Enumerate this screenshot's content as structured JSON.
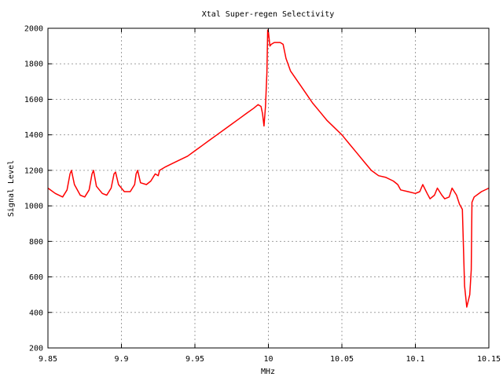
{
  "chart_data": {
    "type": "line",
    "title": "Xtal Super-regen Selectivity",
    "xlabel": "MHz",
    "ylabel": "Signal Level",
    "xlim": [
      9.85,
      10.15
    ],
    "ylim": [
      200,
      2000
    ],
    "x_ticks": [
      9.85,
      9.9,
      9.95,
      10.0,
      10.05,
      10.1,
      10.15
    ],
    "x_tick_labels": [
      "9.85",
      "9.9",
      "9.95",
      "10",
      "10.05",
      "10.1",
      "10.15"
    ],
    "y_ticks": [
      200,
      400,
      600,
      800,
      1000,
      1200,
      1400,
      1600,
      1800,
      2000
    ],
    "y_tick_labels": [
      "200",
      "400",
      "600",
      "800",
      "1000",
      "1200",
      "1400",
      "1600",
      "1800",
      "2000"
    ],
    "grid": true,
    "legend": "none",
    "series_color": "#ff0000",
    "series": [
      {
        "x": [
          9.85,
          9.855,
          9.86,
          9.863,
          9.865,
          9.866,
          9.868,
          9.872,
          9.875,
          9.878,
          9.88,
          9.881,
          9.883,
          9.887,
          9.89,
          9.893,
          9.895,
          9.896,
          9.898,
          9.902,
          9.906,
          9.909,
          9.91,
          9.911,
          9.913,
          9.917,
          9.92,
          9.923,
          9.925,
          9.926,
          9.93,
          9.935,
          9.94,
          9.945,
          9.95,
          9.955,
          9.96,
          9.965,
          9.97,
          9.975,
          9.98,
          9.985,
          9.99,
          9.993,
          9.995,
          9.996,
          9.997,
          9.998,
          9.999,
          9.9995,
          10.0,
          10.001,
          10.002,
          10.004,
          10.006,
          10.008,
          10.01,
          10.012,
          10.015,
          10.02,
          10.025,
          10.03,
          10.035,
          10.04,
          10.045,
          10.05,
          10.055,
          10.06,
          10.065,
          10.07,
          10.075,
          10.08,
          10.085,
          10.088,
          10.09,
          10.095,
          10.1,
          10.103,
          10.105,
          10.108,
          10.11,
          10.113,
          10.115,
          10.118,
          10.12,
          10.123,
          10.125,
          10.128,
          10.13,
          10.132,
          10.1335,
          10.135,
          10.137,
          10.138,
          10.1385,
          10.14,
          10.145,
          10.15
        ],
        "y": [
          1100,
          1070,
          1050,
          1090,
          1180,
          1200,
          1120,
          1060,
          1050,
          1090,
          1180,
          1200,
          1110,
          1070,
          1060,
          1100,
          1180,
          1190,
          1120,
          1080,
          1080,
          1120,
          1180,
          1200,
          1130,
          1120,
          1140,
          1180,
          1170,
          1200,
          1220,
          1240,
          1260,
          1280,
          1310,
          1340,
          1370,
          1400,
          1430,
          1460,
          1490,
          1520,
          1550,
          1570,
          1560,
          1520,
          1450,
          1560,
          1750,
          1990,
          1980,
          1900,
          1910,
          1920,
          1920,
          1920,
          1910,
          1830,
          1760,
          1700,
          1640,
          1580,
          1530,
          1480,
          1440,
          1400,
          1350,
          1300,
          1250,
          1200,
          1170,
          1160,
          1140,
          1120,
          1090,
          1080,
          1070,
          1080,
          1120,
          1070,
          1040,
          1060,
          1100,
          1060,
          1040,
          1050,
          1100,
          1060,
          1010,
          980,
          550,
          430,
          500,
          640,
          1020,
          1050,
          1080,
          1100
        ]
      }
    ]
  }
}
